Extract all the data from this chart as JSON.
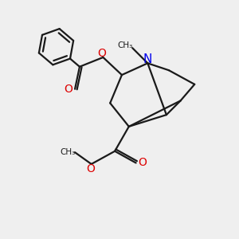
{
  "bg_color": "#efefef",
  "bond_color": "#1a1a1a",
  "N_color": "#0000ee",
  "O_color": "#dd0000",
  "line_width": 1.6,
  "figsize": [
    3.0,
    3.0
  ],
  "dpi": 100,
  "xlim": [
    0,
    10
  ],
  "ylim": [
    0,
    10
  ]
}
